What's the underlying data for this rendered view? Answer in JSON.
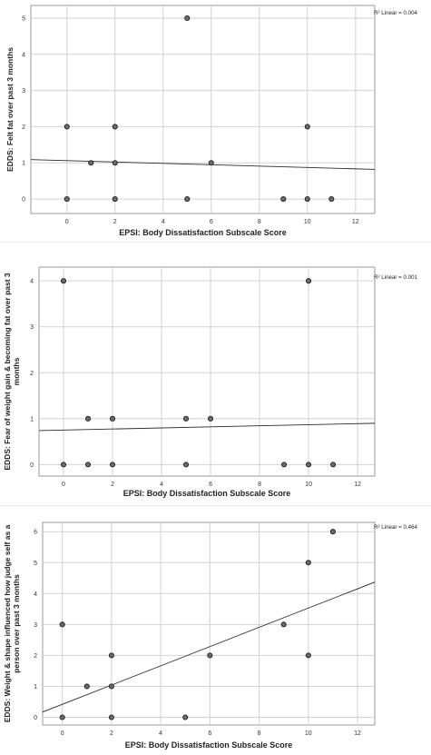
{
  "chart_data": [
    {
      "type": "scatter",
      "xlabel": "EPSI: Body Dissatisfaction Subscale Score",
      "ylabel": "EDDS: Felt fat over past 3 months",
      "r2_label": "R² Linear = 0.004",
      "xlim": [
        -1.5,
        12.8
      ],
      "ylim": [
        -0.4,
        5.35
      ],
      "x_ticks": [
        0,
        2,
        4,
        6,
        8,
        10,
        12
      ],
      "y_ticks": [
        0,
        1,
        2,
        3,
        4,
        5
      ],
      "points": [
        {
          "x": 0,
          "y": 2
        },
        {
          "x": 0,
          "y": 0
        },
        {
          "x": 1,
          "y": 1
        },
        {
          "x": 2,
          "y": 2
        },
        {
          "x": 2,
          "y": 1
        },
        {
          "x": 2,
          "y": 0
        },
        {
          "x": 5,
          "y": 5
        },
        {
          "x": 5,
          "y": 0
        },
        {
          "x": 6,
          "y": 1
        },
        {
          "x": 9,
          "y": 0
        },
        {
          "x": 10,
          "y": 2
        },
        {
          "x": 10,
          "y": 0
        },
        {
          "x": 11,
          "y": 0
        }
      ],
      "fit_line": {
        "x": [
          -1.5,
          12.8
        ],
        "y": [
          1.09,
          0.82
        ]
      }
    },
    {
      "type": "scatter",
      "xlabel": "EPSI: Body Dissatisfaction Subscale Score",
      "ylabel": "EDDS: Fear of weight gain & becoming fat over past 3 months",
      "ylabel_lines": [
        "EDDS: Fear of weight gain & becoming fat over past 3",
        "months"
      ],
      "r2_label": "R² Linear = 0.001",
      "xlim": [
        -1,
        12.7
      ],
      "ylim": [
        -0.25,
        4.3
      ],
      "x_ticks": [
        0,
        2,
        4,
        6,
        8,
        10,
        12
      ],
      "y_ticks": [
        0,
        1,
        2,
        3,
        4
      ],
      "points": [
        {
          "x": 0,
          "y": 4
        },
        {
          "x": 0,
          "y": 0
        },
        {
          "x": 1,
          "y": 1
        },
        {
          "x": 1,
          "y": 0
        },
        {
          "x": 2,
          "y": 1
        },
        {
          "x": 2,
          "y": 0
        },
        {
          "x": 5,
          "y": 1
        },
        {
          "x": 5,
          "y": 0
        },
        {
          "x": 6,
          "y": 1
        },
        {
          "x": 9,
          "y": 0
        },
        {
          "x": 10,
          "y": 4
        },
        {
          "x": 10,
          "y": 0
        },
        {
          "x": 11,
          "y": 0
        }
      ],
      "fit_line": {
        "x": [
          -1,
          12.7
        ],
        "y": [
          0.74,
          0.9
        ]
      }
    },
    {
      "type": "scatter",
      "xlabel": "EPSI: Body Dissatisfaction Subscale Score",
      "ylabel": "EDDS: Weight & shape influenced how judge self as a person over past 3 months",
      "ylabel_lines": [
        "EDDS: Weight & shape influenced how judge self as a",
        "person over past 3 months"
      ],
      "r2_label": "R² Linear = 0.464",
      "xlim": [
        -0.8,
        12.7
      ],
      "ylim": [
        -0.25,
        6.3
      ],
      "x_ticks": [
        0,
        2,
        4,
        6,
        8,
        10,
        12
      ],
      "y_ticks": [
        0,
        1,
        2,
        3,
        4,
        5,
        6
      ],
      "points": [
        {
          "x": 0,
          "y": 3
        },
        {
          "x": 0,
          "y": 0
        },
        {
          "x": 1,
          "y": 1
        },
        {
          "x": 2,
          "y": 2
        },
        {
          "x": 2,
          "y": 1
        },
        {
          "x": 2,
          "y": 0
        },
        {
          "x": 5,
          "y": 0
        },
        {
          "x": 6,
          "y": 2
        },
        {
          "x": 9,
          "y": 3
        },
        {
          "x": 10,
          "y": 5
        },
        {
          "x": 10,
          "y": 2
        },
        {
          "x": 11,
          "y": 6
        }
      ],
      "fit_line": {
        "x": [
          -0.8,
          12.7
        ],
        "y": [
          0.17,
          4.37
        ]
      }
    }
  ]
}
